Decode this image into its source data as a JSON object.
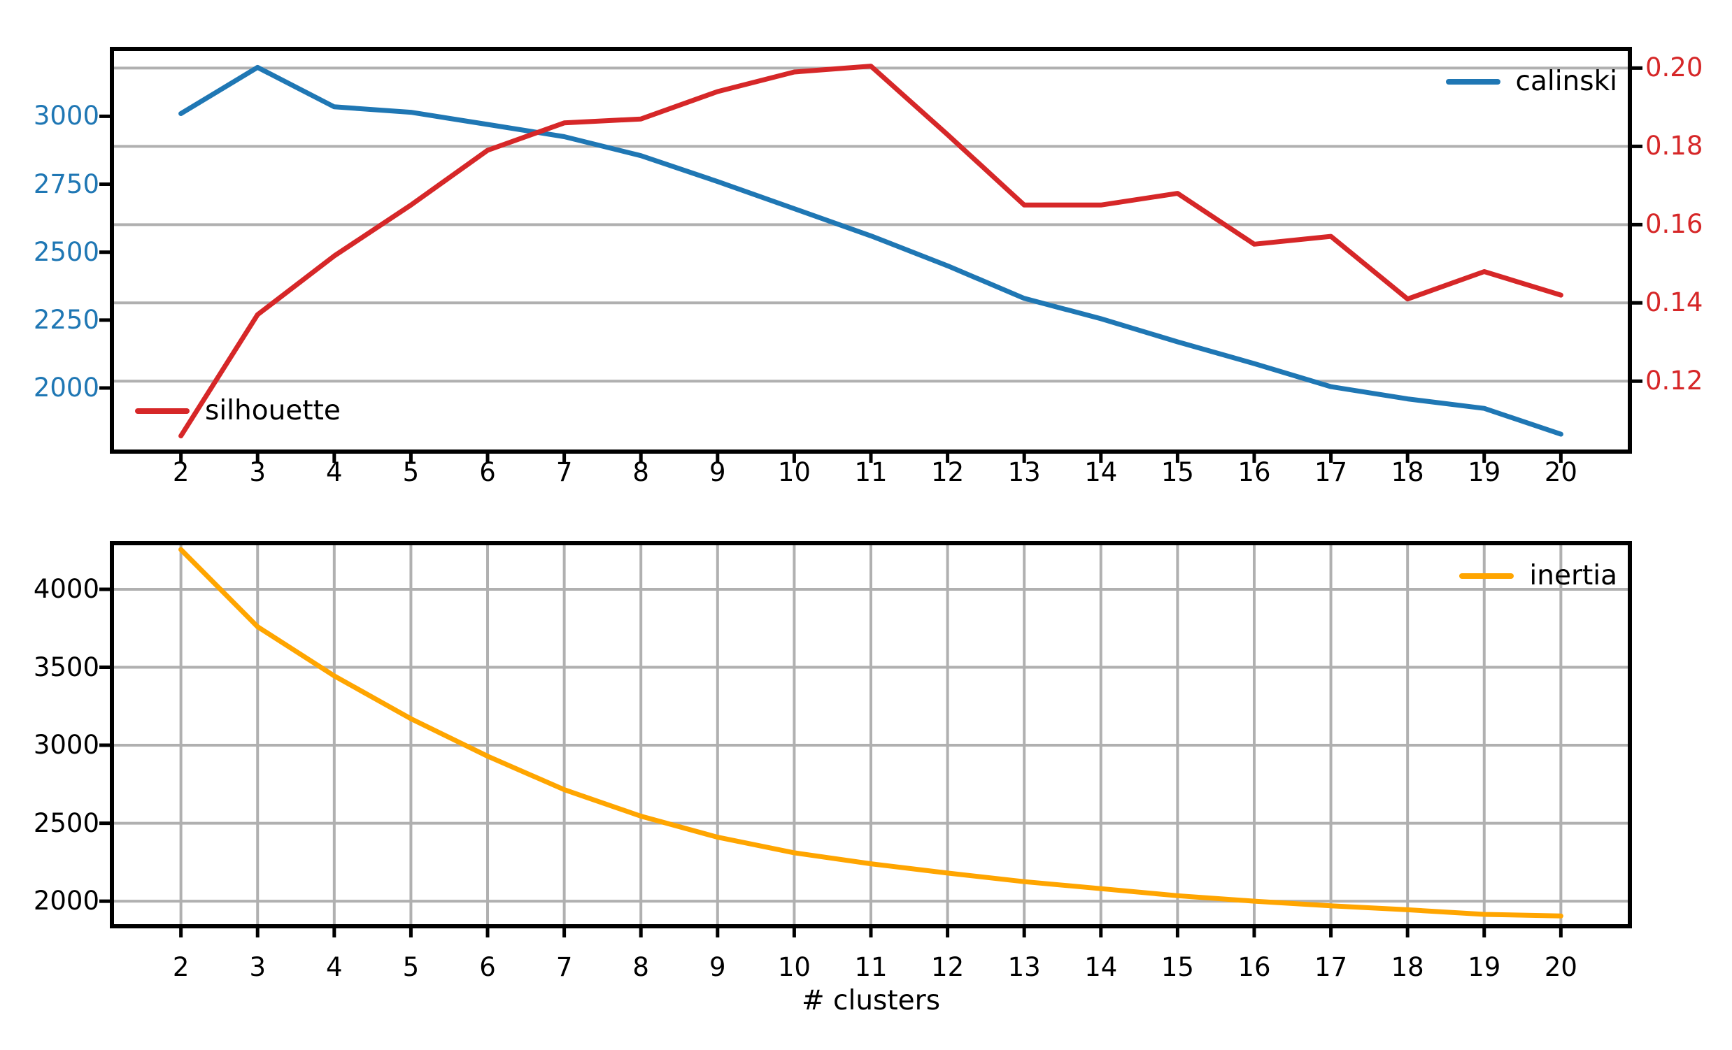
{
  "figure": {
    "background": "#ffffff"
  },
  "colors": {
    "calinski": "#1f77b4",
    "silhouette": "#d62728",
    "inertia": "#ffa500",
    "grid": "#b0b0b0",
    "spine": "#000000",
    "x_tick_text": "#000000"
  },
  "chart_data": [
    {
      "type": "line",
      "title": "",
      "x": [
        2,
        3,
        4,
        5,
        6,
        7,
        8,
        9,
        10,
        11,
        12,
        13,
        14,
        15,
        16,
        17,
        18,
        19,
        20
      ],
      "xlim": [
        1.1,
        20.9
      ],
      "x_tick_labels": [
        "2",
        "3",
        "4",
        "5",
        "6",
        "7",
        "8",
        "9",
        "10",
        "11",
        "12",
        "13",
        "14",
        "15",
        "16",
        "17",
        "18",
        "19",
        "20"
      ],
      "series": [
        {
          "name": "calinski",
          "axis": "left",
          "color": "#1f77b4",
          "values": [
            3010,
            3180,
            3035,
            3015,
            2970,
            2925,
            2855,
            2760,
            2660,
            2560,
            2450,
            2330,
            2255,
            2170,
            2090,
            2005,
            1960,
            1925,
            1830
          ]
        },
        {
          "name": "silhouette",
          "axis": "right",
          "color": "#d62728",
          "values": [
            0.106,
            0.137,
            0.152,
            0.165,
            0.179,
            0.186,
            0.187,
            0.194,
            0.199,
            0.2005,
            0.183,
            0.165,
            0.165,
            0.168,
            0.155,
            0.157,
            0.141,
            0.148,
            0.142
          ]
        }
      ],
      "left_axis": {
        "lim": [
          1766,
          3248
        ],
        "ticks": [
          2000,
          2250,
          2500,
          2750,
          3000
        ],
        "tick_labels": [
          "2000",
          "2250",
          "2500",
          "2750",
          "3000"
        ],
        "label_color": "#1f77b4"
      },
      "right_axis": {
        "lim": [
          0.102,
          0.2049
        ],
        "ticks": [
          0.12,
          0.14,
          0.16,
          0.18,
          0.2
        ],
        "tick_labels": [
          "0.12",
          "0.14",
          "0.16",
          "0.18",
          "0.20"
        ],
        "label_color": "#d62728",
        "grid": "horizontal"
      },
      "grid": "right-horizontal",
      "legend_position": [
        "upper right",
        "lower left"
      ],
      "legends": [
        {
          "label": "calinski"
        },
        {
          "label": "silhouette"
        }
      ]
    },
    {
      "type": "line",
      "title": "",
      "x": [
        2,
        3,
        4,
        5,
        6,
        7,
        8,
        9,
        10,
        11,
        12,
        13,
        14,
        15,
        16,
        17,
        18,
        19,
        20
      ],
      "xlim": [
        1.1,
        20.9
      ],
      "x_tick_labels": [
        "2",
        "3",
        "4",
        "5",
        "6",
        "7",
        "8",
        "9",
        "10",
        "11",
        "12",
        "13",
        "14",
        "15",
        "16",
        "17",
        "18",
        "19",
        "20"
      ],
      "xlabel": "# clusters",
      "series": [
        {
          "name": "inertia",
          "axis": "left",
          "color": "#ffa500",
          "values": [
            4255,
            3760,
            3445,
            3170,
            2930,
            2715,
            2545,
            2410,
            2310,
            2240,
            2180,
            2125,
            2080,
            2035,
            2000,
            1970,
            1945,
            1915,
            1905
          ]
        }
      ],
      "left_axis": {
        "lim": [
          1839,
          4296
        ],
        "ticks": [
          2000,
          2500,
          3000,
          3500,
          4000
        ],
        "tick_labels": [
          "2000",
          "2500",
          "3000",
          "3500",
          "4000"
        ],
        "label_color": "#000000"
      },
      "grid": "both",
      "legend_position": [
        "upper right"
      ],
      "legends": [
        {
          "label": "inertia"
        }
      ]
    }
  ]
}
